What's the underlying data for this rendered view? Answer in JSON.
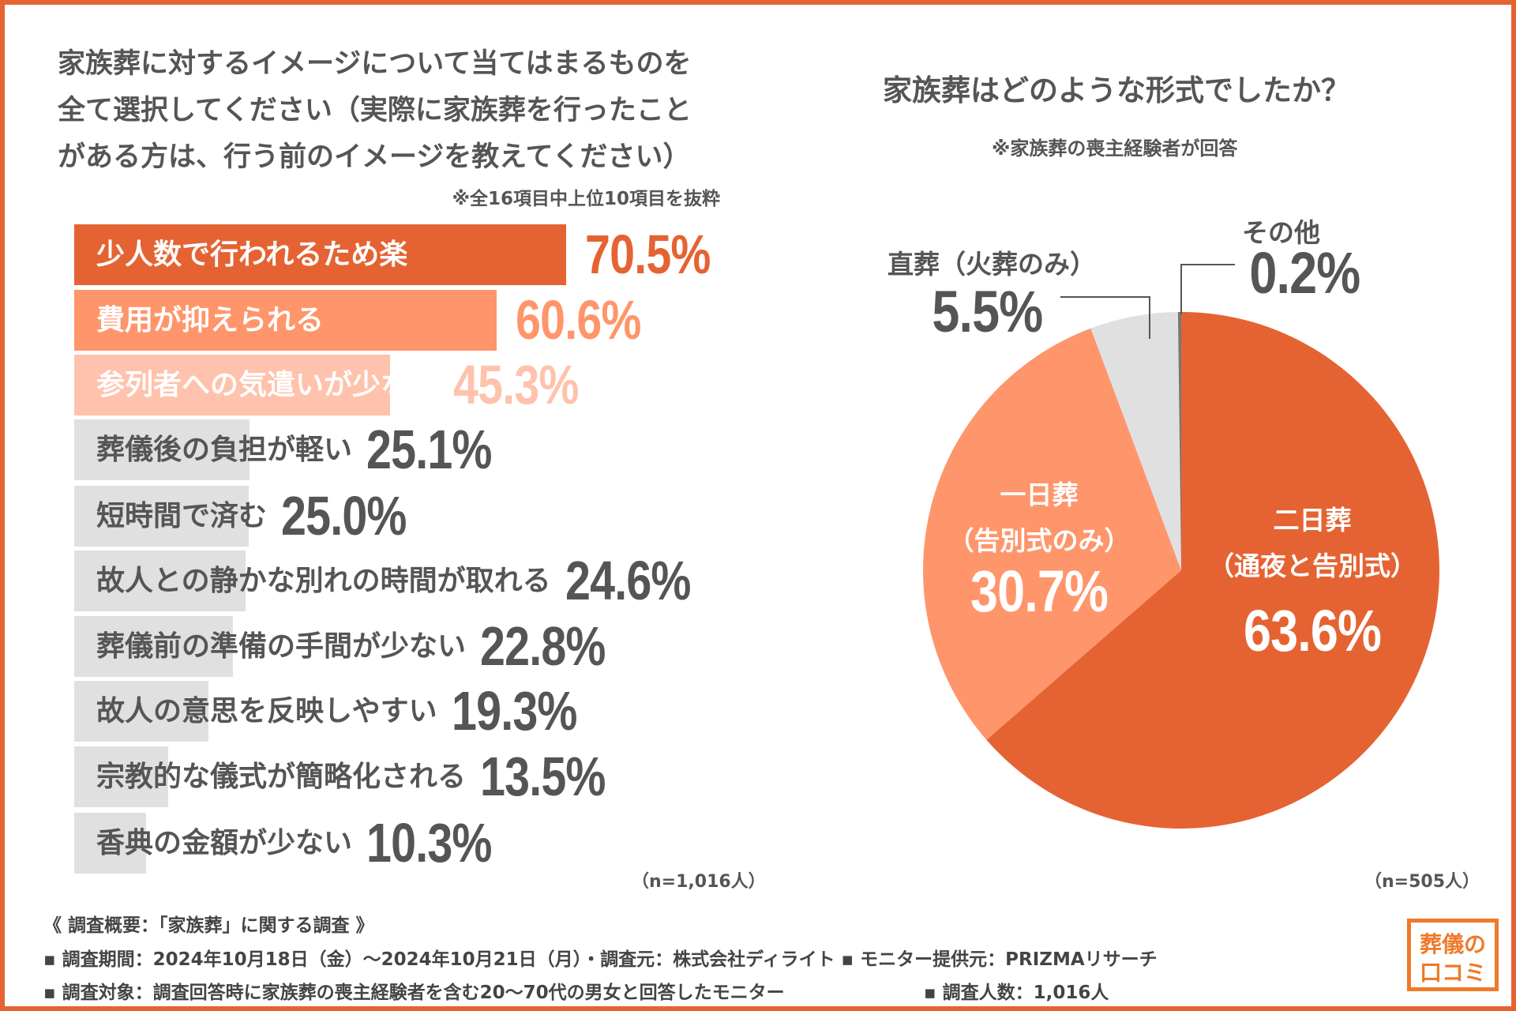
{
  "left": {
    "title_lines": [
      "家族葬に対するイメージについて当てはまるものを",
      "全て選択してください（実際に家族葬を行ったこと",
      "がある方は、行う前のイメージを教えてください）"
    ],
    "note": "※全16項目中上位10項目を抜粋",
    "n_label": "（n=1,016人）"
  },
  "right": {
    "title": "家族葬はどのような形式でしたか？",
    "subtitle": "※家族葬の喪主経験者が回答",
    "n_label": "（n=505人）"
  },
  "chart_data": [
    {
      "type": "bar",
      "orientation": "horizontal",
      "categories": [
        "少人数で行われるため楽",
        "費用が抑えられる",
        "参列者への気遣いが少ない",
        "葬儀後の負担が軽い",
        "短時間で済む",
        "故人との静かな別れの時間が取れる",
        "葬儀前の準備の手間が少ない",
        "故人の意思を反映しやすい",
        "宗教的な儀式が簡略化される",
        "香典の金額が少ない"
      ],
      "values": [
        70.5,
        60.6,
        45.3,
        25.1,
        25.0,
        24.6,
        22.8,
        19.3,
        13.5,
        10.3
      ],
      "value_labels": [
        "70.5%",
        "60.6%",
        "45.3%",
        "25.1%",
        "25.0%",
        "24.6%",
        "22.8%",
        "19.3%",
        "13.5%",
        "10.3%"
      ],
      "colors": [
        "#E56333",
        "#FF956B",
        "#FFC2AC",
        "#E0E0E0",
        "#E0E0E0",
        "#E0E0E0",
        "#E0E0E0",
        "#E0E0E0",
        "#E0E0E0",
        "#E0E0E0"
      ],
      "value_colors": [
        "#E56333",
        "#FF956B",
        "#FFC2AC",
        "#555555",
        "#555555",
        "#555555",
        "#555555",
        "#555555",
        "#555555",
        "#555555"
      ]
    },
    {
      "type": "pie",
      "slices": [
        {
          "label": "二日葬",
          "sublabel": "（通夜と告別式）",
          "value": 63.6,
          "value_label": "63.6%",
          "color": "#E56333"
        },
        {
          "label": "一日葬",
          "sublabel": "（告別式のみ）",
          "value": 30.7,
          "value_label": "30.7%",
          "color": "#FF956B"
        },
        {
          "label": "直葬（火葬のみ）",
          "sublabel": "",
          "value": 5.5,
          "value_label": "5.5%",
          "color": "#E0E0E0"
        },
        {
          "label": "その他",
          "sublabel": "",
          "value": 0.2,
          "value_label": "0.2%",
          "color": "#777777"
        }
      ]
    }
  ],
  "footer": {
    "heading": "《 調査概要：「家族葬」に関する調査 》",
    "line1": "▪ 調査期間：2024年10月18日（金）～2024年10月21日（月）・調査元：株式会社ディライト ▪ モニター提供元：PRIZMAリサーチ",
    "line2a": "▪ 調査対象：調査回答時に家族葬の喪主経験者を含む20～70代の男女と回答したモニター",
    "line2b": "▪ 調査人数：1,016人"
  },
  "logo": {
    "line1": "葬儀の",
    "line2": "口コミ",
    "color": "#EE7A2A"
  }
}
